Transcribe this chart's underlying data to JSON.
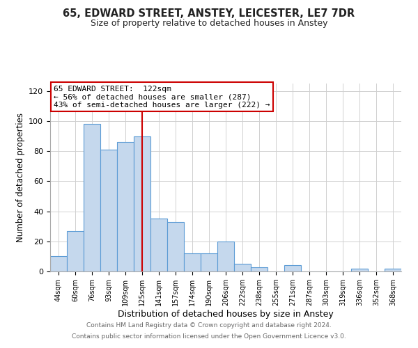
{
  "title": "65, EDWARD STREET, ANSTEY, LEICESTER, LE7 7DR",
  "subtitle": "Size of property relative to detached houses in Anstey",
  "xlabel": "Distribution of detached houses by size in Anstey",
  "ylabel": "Number of detached properties",
  "bar_labels": [
    "44sqm",
    "60sqm",
    "76sqm",
    "93sqm",
    "109sqm",
    "125sqm",
    "141sqm",
    "157sqm",
    "174sqm",
    "190sqm",
    "206sqm",
    "222sqm",
    "238sqm",
    "255sqm",
    "271sqm",
    "287sqm",
    "303sqm",
    "319sqm",
    "336sqm",
    "352sqm",
    "368sqm"
  ],
  "bar_values": [
    10,
    27,
    98,
    81,
    86,
    90,
    35,
    33,
    12,
    12,
    20,
    5,
    3,
    0,
    4,
    0,
    0,
    0,
    2,
    0,
    2
  ],
  "bar_color": "#c5d8ed",
  "bar_edge_color": "#5b9bd5",
  "ylim": [
    0,
    125
  ],
  "yticks": [
    0,
    20,
    40,
    60,
    80,
    100,
    120
  ],
  "vline_x": 5,
  "vline_color": "#cc0000",
  "annotation_title": "65 EDWARD STREET:  122sqm",
  "annotation_line1": "← 56% of detached houses are smaller (287)",
  "annotation_line2": "43% of semi-detached houses are larger (222) →",
  "annotation_box_color": "#ffffff",
  "annotation_box_edge": "#cc0000",
  "footer_line1": "Contains HM Land Registry data © Crown copyright and database right 2024.",
  "footer_line2": "Contains public sector information licensed under the Open Government Licence v3.0.",
  "background_color": "#ffffff",
  "plot_bg_color": "#ffffff",
  "grid_color": "#d0d0d0"
}
